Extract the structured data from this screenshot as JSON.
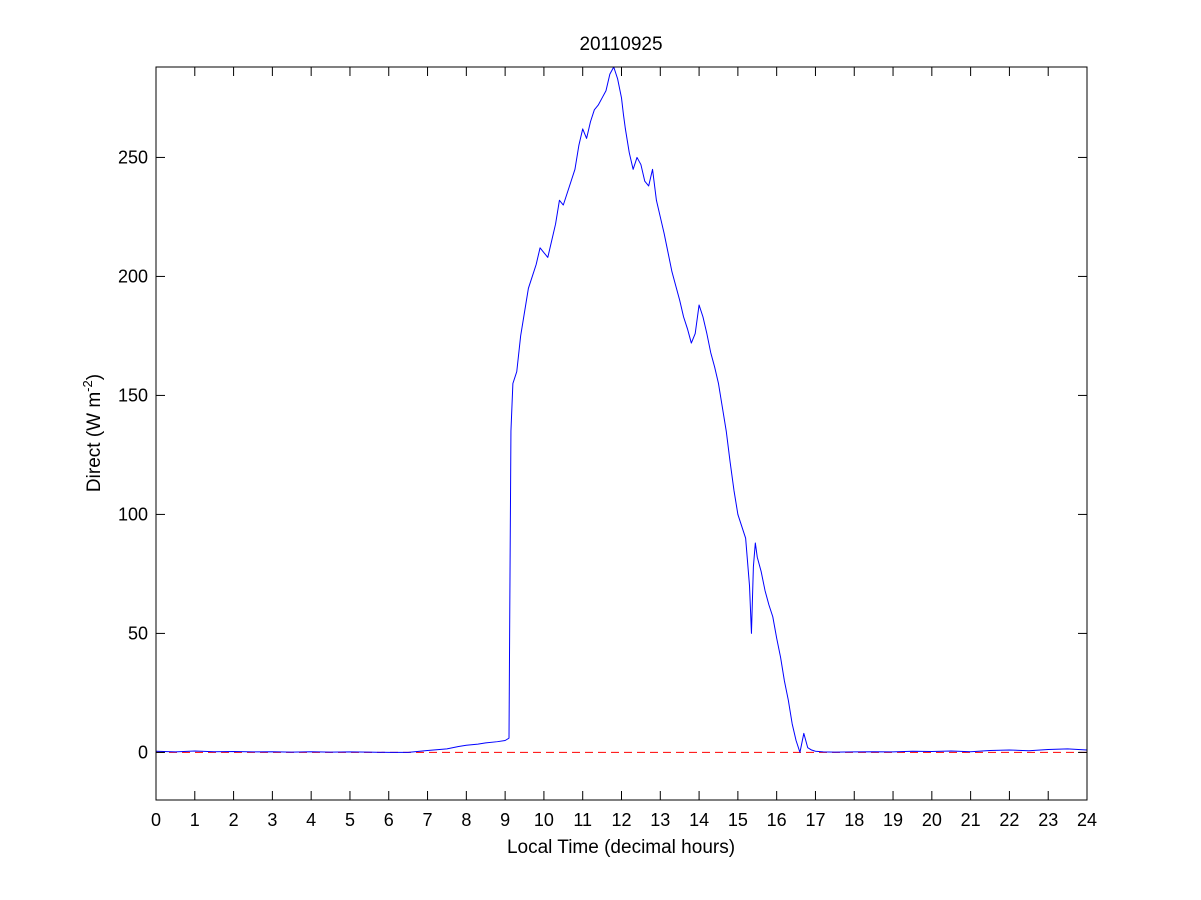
{
  "chart_data": {
    "type": "line",
    "title": "20110925",
    "xlabel": "Local Time (decimal hours)",
    "ylabel": {
      "prefix": "Direct (W m",
      "superscript": "-2",
      "suffix": ")"
    },
    "xlim": [
      0,
      24
    ],
    "ylim": [
      -20,
      288
    ],
    "x_ticks": [
      0,
      1,
      2,
      3,
      4,
      5,
      6,
      7,
      8,
      9,
      10,
      11,
      12,
      13,
      14,
      15,
      16,
      17,
      18,
      19,
      20,
      21,
      22,
      23,
      24
    ],
    "y_ticks": [
      0,
      50,
      100,
      150,
      200,
      250
    ],
    "grid": false,
    "reference_line": {
      "y": 0,
      "color": "#ff0000",
      "style": "dashed"
    },
    "series": [
      {
        "color": "#0000ff",
        "x": [
          0,
          0.5,
          1,
          1.5,
          2,
          2.5,
          3,
          3.5,
          4,
          4.5,
          5,
          5.5,
          6,
          6.5,
          7,
          7.5,
          7.8,
          8,
          8.3,
          8.5,
          8.8,
          9,
          9.1,
          9.12,
          9.15,
          9.2,
          9.3,
          9.4,
          9.5,
          9.6,
          9.7,
          9.8,
          9.9,
          10,
          10.1,
          10.2,
          10.3,
          10.4,
          10.5,
          10.6,
          10.7,
          10.8,
          10.9,
          11,
          11.1,
          11.2,
          11.3,
          11.4,
          11.5,
          11.6,
          11.7,
          11.8,
          11.9,
          12,
          12.05,
          12.1,
          12.2,
          12.3,
          12.4,
          12.5,
          12.6,
          12.7,
          12.8,
          12.9,
          13,
          13.1,
          13.2,
          13.3,
          13.4,
          13.5,
          13.6,
          13.7,
          13.8,
          13.9,
          14,
          14.1,
          14.2,
          14.3,
          14.4,
          14.5,
          14.6,
          14.7,
          14.8,
          14.9,
          15,
          15.1,
          15.2,
          15.3,
          15.35,
          15.4,
          15.45,
          15.5,
          15.6,
          15.7,
          15.8,
          15.9,
          16,
          16.1,
          16.2,
          16.3,
          16.4,
          16.5,
          16.6,
          16.7,
          16.75,
          16.8,
          16.9,
          17,
          17.2,
          17.5,
          18,
          18.5,
          19,
          19.5,
          20,
          20.5,
          21,
          21.5,
          22,
          22.5,
          23,
          23.5,
          24
        ],
        "values": [
          0.5,
          0.2,
          0.6,
          0.3,
          0.4,
          0.2,
          0.3,
          0.1,
          0.3,
          0.1,
          0.2,
          0.1,
          0,
          0,
          0.8,
          1.5,
          2.5,
          3,
          3.5,
          4,
          4.5,
          5,
          6,
          60,
          135,
          155,
          160,
          175,
          185,
          195,
          200,
          205,
          212,
          210,
          208,
          215,
          222,
          232,
          230,
          235,
          240,
          245,
          255,
          262,
          258,
          265,
          270,
          272,
          275,
          278,
          285,
          288,
          283,
          275,
          268,
          262,
          252,
          245,
          250,
          247,
          240,
          238,
          245,
          232,
          225,
          218,
          210,
          202,
          196,
          190,
          183,
          178,
          172,
          176,
          188,
          183,
          176,
          168,
          162,
          155,
          145,
          135,
          122,
          110,
          100,
          95,
          90,
          70,
          50,
          78,
          88,
          82,
          76,
          68,
          62,
          57,
          48,
          40,
          30,
          22,
          12,
          5,
          0,
          8,
          5,
          2,
          1,
          0.5,
          0.2,
          0.1,
          0.2,
          0.3,
          0.2,
          0.5,
          0.4,
          0.6,
          0.3,
          0.8,
          1,
          0.7,
          1.2,
          1.5,
          1
        ]
      }
    ]
  }
}
